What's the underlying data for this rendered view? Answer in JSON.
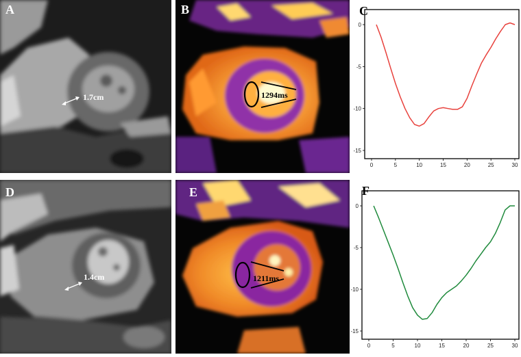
{
  "panels": [
    {
      "label": "A",
      "measurement": "1.7cm"
    },
    {
      "label": "B",
      "measurement": "1294ms"
    },
    {
      "label": "C"
    },
    {
      "label": "D",
      "measurement": "1.4cm"
    },
    {
      "label": "E",
      "measurement": "1211ms"
    },
    {
      "label": "F"
    }
  ],
  "colors": {
    "chart_c": "#e8413c",
    "chart_f": "#1f8a3c"
  },
  "chart_data": [
    {
      "type": "line",
      "xlim": [
        0,
        30
      ],
      "ylim": [
        -15,
        0
      ],
      "xticks": [
        0,
        5,
        10,
        15,
        20,
        25,
        30
      ],
      "yticks": [
        0,
        -5,
        -10,
        -15
      ],
      "xlabel": "",
      "ylabel": "",
      "x": [
        1,
        2,
        3,
        4,
        5,
        6,
        7,
        8,
        9,
        10,
        11,
        12,
        13,
        14,
        15,
        16,
        17,
        18,
        19,
        20,
        21,
        22,
        23,
        24,
        25,
        26,
        27,
        28,
        29,
        30
      ],
      "series": [
        {
          "values": [
            0,
            -1.5,
            -3.3,
            -5.2,
            -7,
            -8.6,
            -10,
            -11.1,
            -11.9,
            -12.1,
            -11.8,
            -11,
            -10.3,
            -10,
            -9.9,
            -10,
            -10.1,
            -10.1,
            -9.8,
            -8.8,
            -7.3,
            -5.9,
            -4.6,
            -3.6,
            -2.7,
            -1.7,
            -0.8,
            0,
            0.2,
            0
          ]
        }
      ]
    },
    {
      "type": "line",
      "xlim": [
        0,
        30
      ],
      "ylim": [
        -15,
        0
      ],
      "xticks": [
        0,
        5,
        10,
        15,
        20,
        25,
        30
      ],
      "yticks": [
        0,
        -5,
        -10,
        -15
      ],
      "xlabel": "",
      "ylabel": "",
      "x": [
        1,
        2,
        3,
        4,
        5,
        6,
        7,
        8,
        9,
        10,
        11,
        12,
        13,
        14,
        15,
        16,
        17,
        18,
        19,
        20,
        21,
        22,
        23,
        24,
        25,
        26,
        27,
        28,
        29,
        30
      ],
      "series": [
        {
          "values": [
            0,
            -1.4,
            -2.9,
            -4.4,
            -5.9,
            -7.5,
            -9.2,
            -10.8,
            -12.2,
            -13.1,
            -13.6,
            -13.5,
            -12.8,
            -11.8,
            -11,
            -10.4,
            -10,
            -9.6,
            -9,
            -8.3,
            -7.5,
            -6.6,
            -5.8,
            -5,
            -4.3,
            -3.3,
            -2,
            -0.5,
            0,
            0
          ]
        }
      ]
    }
  ]
}
